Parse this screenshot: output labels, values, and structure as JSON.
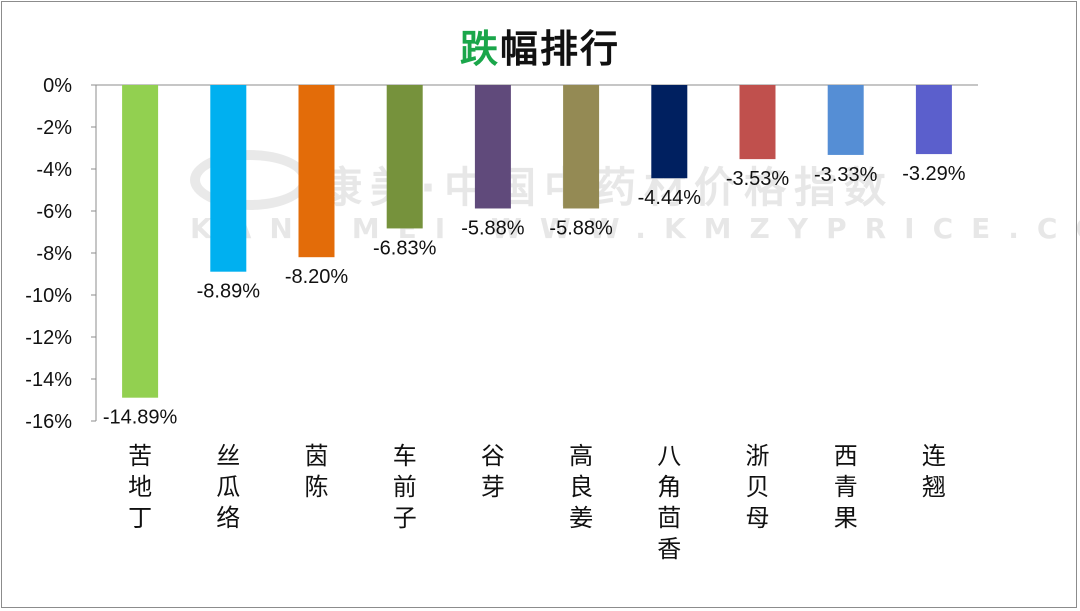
{
  "title_accent": "跌",
  "title_rest": "幅排行",
  "watermark": {
    "line1": "康美·中国中药材价格指数",
    "line2": "KANGMEI WWW.KMZYPRICE.COM"
  },
  "chart_data": {
    "type": "bar",
    "title": "跌幅排行",
    "categories": [
      "苦地丁",
      "丝瓜络",
      "茵陈",
      "车前子",
      "谷芽",
      "高良姜",
      "八角茴香",
      "浙贝母",
      "西青果",
      "连翘"
    ],
    "values": [
      -14.89,
      -8.89,
      -8.2,
      -6.83,
      -5.88,
      -5.88,
      -4.44,
      -3.53,
      -3.33,
      -3.29
    ],
    "data_labels": [
      "-14.89%",
      "-8.89%",
      "-8.20%",
      "-6.83%",
      "-5.88%",
      "-5.88%",
      "-4.44%",
      "-3.53%",
      "-3.33%",
      "-3.29%"
    ],
    "colors": [
      "#92d050",
      "#00b0f0",
      "#e36c09",
      "#76923c",
      "#604a7b",
      "#948a54",
      "#002060",
      "#c0504d",
      "#558ed5",
      "#5b5fcc"
    ],
    "y_ticks": [
      "0%",
      "-2%",
      "-4%",
      "-6%",
      "-8%",
      "-10%",
      "-12%",
      "-14%",
      "-16%"
    ],
    "ylim": [
      -16,
      0
    ],
    "grid": false,
    "legend": "none"
  }
}
